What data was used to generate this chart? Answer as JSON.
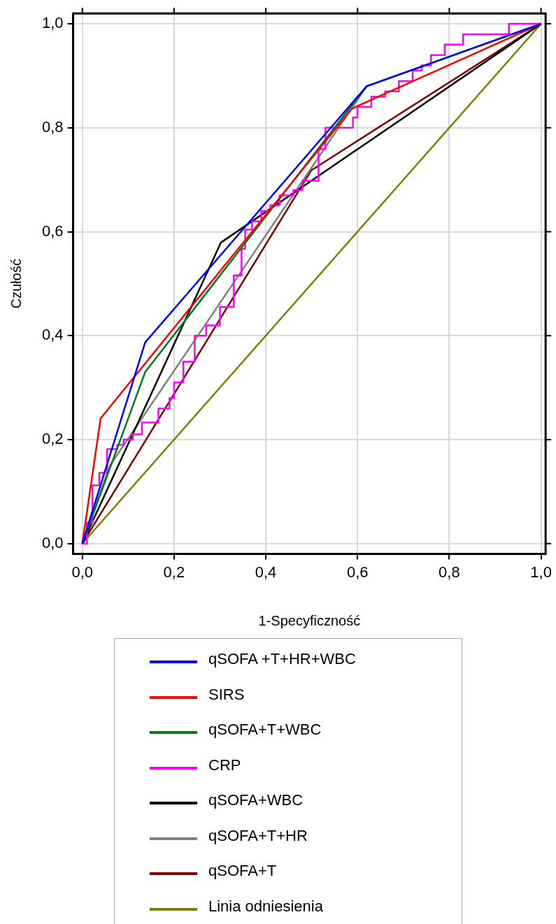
{
  "chart_data": {
    "type": "line",
    "xlabel": "1-Specyficzność",
    "ylabel": "Czułość",
    "xlim": [
      -0.02,
      1.01
    ],
    "ylim": [
      -0.02,
      1.02
    ],
    "xticks": [
      {
        "value": 0,
        "label": "0,0"
      },
      {
        "value": 0.2,
        "label": "0,2"
      },
      {
        "value": 0.4,
        "label": "0,4"
      },
      {
        "value": 0.6,
        "label": "0,6"
      },
      {
        "value": 0.8,
        "label": "0,8"
      },
      {
        "value": 1,
        "label": "1,0"
      }
    ],
    "yticks": [
      {
        "value": 0,
        "label": "0,0"
      },
      {
        "value": 0.2,
        "label": "0,2"
      },
      {
        "value": 0.4,
        "label": "0,4"
      },
      {
        "value": 0.6,
        "label": "0,6"
      },
      {
        "value": 0.8,
        "label": "0,8"
      },
      {
        "value": 1,
        "label": "1,0"
      }
    ],
    "grid": true,
    "legend": "bottom",
    "marker": "none",
    "line_style": "solid",
    "series": [
      {
        "name": "qSOFA +T+HR+WBC",
        "color": "#0000ff",
        "x": [
          0,
          0.137,
          0.62,
          1
        ],
        "values": [
          0,
          0.387,
          0.88,
          1
        ]
      },
      {
        "name": "SIRS",
        "color": "#ff0000",
        "x": [
          0,
          0.04,
          0.588,
          1
        ],
        "values": [
          0,
          0.241,
          0.837,
          1
        ]
      },
      {
        "name": "qSOFA+T+WBC",
        "color": "#007a1e",
        "x": [
          0,
          0.137,
          0.62,
          1
        ],
        "values": [
          0,
          0.33,
          0.88,
          1
        ]
      },
      {
        "name": "CRP",
        "color": "#ff00ff",
        "x": [
          0,
          0.01,
          0.01,
          0.022,
          0.022,
          0.037,
          0.037,
          0.054,
          0.054,
          0.076,
          0.076,
          0.09,
          0.09,
          0.11,
          0.11,
          0.13,
          0.13,
          0.166,
          0.166,
          0.19,
          0.19,
          0.2,
          0.2,
          0.22,
          0.22,
          0.245,
          0.245,
          0.27,
          0.27,
          0.3,
          0.3,
          0.33,
          0.33,
          0.347,
          0.347,
          0.355,
          0.355,
          0.37,
          0.37,
          0.39,
          0.39,
          0.41,
          0.41,
          0.43,
          0.43,
          0.46,
          0.46,
          0.48,
          0.48,
          0.515,
          0.515,
          0.53,
          0.53,
          0.59,
          0.59,
          0.6,
          0.6,
          0.63,
          0.63,
          0.66,
          0.66,
          0.69,
          0.69,
          0.72,
          0.72,
          0.74,
          0.74,
          0.76,
          0.76,
          0.79,
          0.79,
          0.83,
          0.83,
          0.93,
          0.93,
          1
        ],
        "values": [
          0,
          0,
          0.04,
          0.04,
          0.112,
          0.112,
          0.136,
          0.136,
          0.182,
          0.182,
          0.19,
          0.19,
          0.2,
          0.2,
          0.21,
          0.21,
          0.233,
          0.233,
          0.26,
          0.26,
          0.28,
          0.28,
          0.31,
          0.31,
          0.35,
          0.35,
          0.4,
          0.4,
          0.42,
          0.42,
          0.455,
          0.455,
          0.516,
          0.516,
          0.567,
          0.567,
          0.604,
          0.604,
          0.62,
          0.62,
          0.64,
          0.64,
          0.651,
          0.651,
          0.67,
          0.67,
          0.68,
          0.68,
          0.698,
          0.698,
          0.759,
          0.759,
          0.8,
          0.8,
          0.82,
          0.82,
          0.84,
          0.84,
          0.86,
          0.86,
          0.87,
          0.87,
          0.89,
          0.89,
          0.91,
          0.91,
          0.92,
          0.92,
          0.94,
          0.94,
          0.96,
          0.96,
          0.98,
          0.98,
          1,
          1
        ]
      },
      {
        "name": "qSOFA+WBC",
        "color": "#000000",
        "x": [
          0,
          0.302,
          1
        ],
        "values": [
          0,
          0.579,
          1
        ]
      },
      {
        "name": "qSOFA+T+HR",
        "color": "#808080",
        "x": [
          0,
          0.06,
          0.62,
          1
        ],
        "values": [
          0,
          0.15,
          0.88,
          1
        ]
      },
      {
        "name": "qSOFA+T",
        "color": "#800000",
        "x": [
          0,
          0.499,
          1
        ],
        "values": [
          0,
          0.718,
          1
        ]
      },
      {
        "name": "Linia odniesienia",
        "color": "#808000",
        "x": [
          0,
          1
        ],
        "values": [
          0,
          1
        ]
      }
    ]
  }
}
